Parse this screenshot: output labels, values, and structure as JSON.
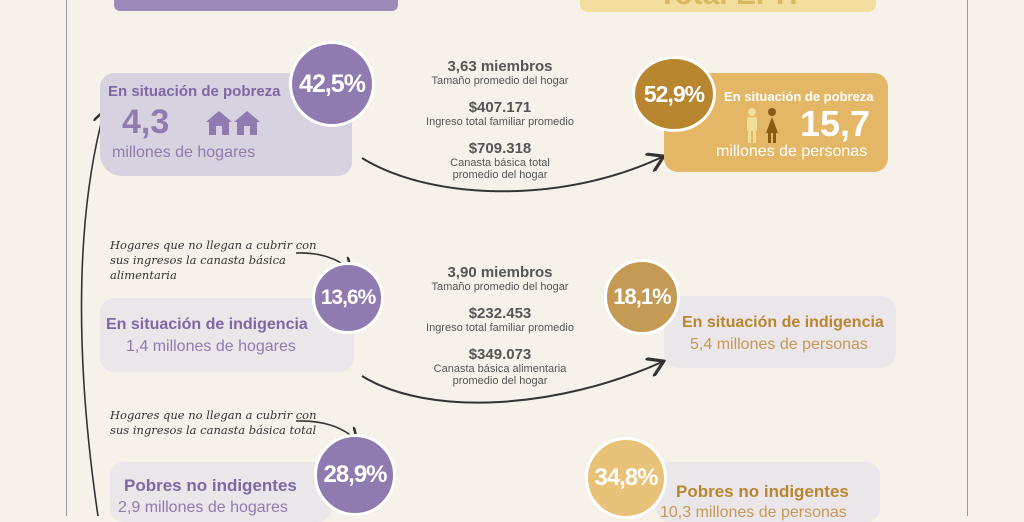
{
  "header": {
    "right_title": "Total EPH"
  },
  "colors": {
    "purple": "#8f7bb0",
    "gold": "#e3b766",
    "gold_dark": "#b8862f",
    "grey_box": "#ebe6ea"
  },
  "households": {
    "poverty": {
      "percent": "42,5%",
      "title": "En situación de pobreza",
      "value": "4,3",
      "unit": "millones de hogares",
      "icon": "house-icon"
    },
    "indigence": {
      "percent": "13,6%",
      "title": "En situación de indigencia",
      "subtitle": "1,4 millones de hogares"
    },
    "non_indigent_poor": {
      "percent": "28,9%",
      "title": "Pobres no indigentes",
      "subtitle": "2,9 millones de hogares"
    }
  },
  "people": {
    "poverty": {
      "percent": "52,9%",
      "title": "En situación de pobreza",
      "value": "15,7",
      "unit": "millones de personas",
      "icon": "people-icon"
    },
    "indigence": {
      "percent": "18,1%",
      "title": "En situación de indigencia",
      "subtitle": "5,4 millones de personas"
    },
    "non_indigent_poor": {
      "percent": "34,8%",
      "title": "Pobres no indigentes",
      "subtitle": "10,3 millones de personas"
    }
  },
  "poverty_stats": {
    "members": "3,63 miembros",
    "members_label": "Tamaño promedio del hogar",
    "income": "$407.171",
    "income_label": "Ingreso total familiar promedio",
    "basket": "$709.318",
    "basket_label_1": "Canasta básica total",
    "basket_label_2": "promedio del hogar"
  },
  "indigence_stats": {
    "members": "3,90 miembros",
    "members_label": "Tamaño promedio del hogar",
    "income": "$232.453",
    "income_label": "Ingreso total familiar promedio",
    "basket": "$349.073",
    "basket_label_1": "Canasta básica alimentaria",
    "basket_label_2": "promedio del hogar"
  },
  "notes": {
    "food_1": "Hogares que no llegan a cubrir con",
    "food_2": "sus ingresos la canasta básica",
    "food_3": "alimentaria",
    "total_1": "Hogares que no llegan a cubrir con",
    "total_2": "sus ingresos la canasta básica total"
  }
}
